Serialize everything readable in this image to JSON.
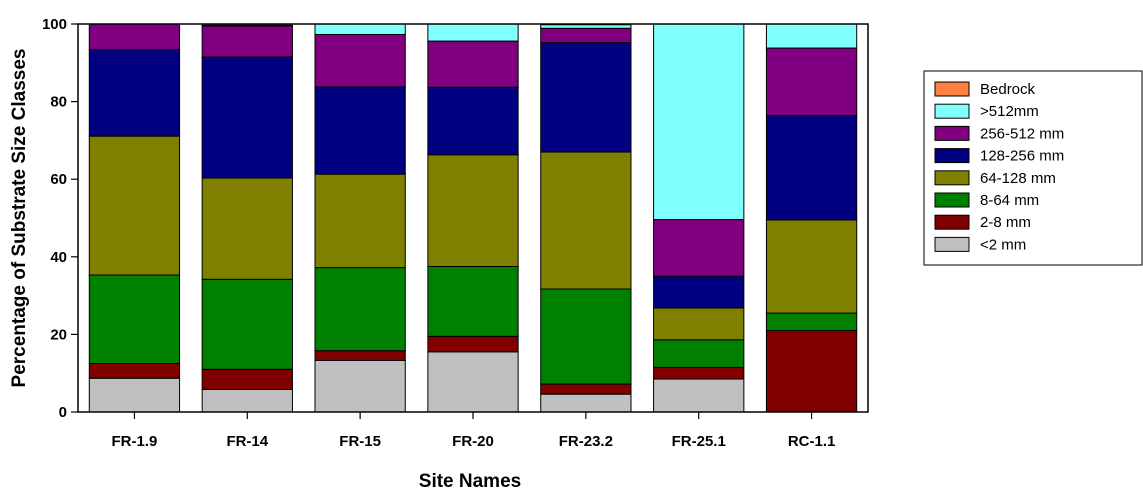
{
  "chart_data": {
    "type": "bar",
    "stacked": true,
    "xlabel": "Site Names",
    "ylabel": "Percentage of Substrate Size Classes",
    "ylim": [
      0,
      100
    ],
    "yticks": [
      0,
      20,
      40,
      60,
      80,
      100
    ],
    "legend_position": "right",
    "categories": [
      "FR-1.9",
      "FR-14",
      "FR-15",
      "FR-20",
      "FR-23.2",
      "FR-25.1",
      "RC-1.1"
    ],
    "series": [
      {
        "name": "<2 mm",
        "color": "#c0c0c0",
        "values": [
          8.7,
          5.8,
          13.3,
          15.5,
          4.6,
          8.5,
          0
        ]
      },
      {
        "name": "2-8 mm",
        "color": "#800000",
        "values": [
          3.8,
          5.2,
          2.5,
          4.0,
          2.6,
          3.0,
          21.0
        ]
      },
      {
        "name": "8-64 mm",
        "color": "#008000",
        "values": [
          22.8,
          23.2,
          21.4,
          18.0,
          24.5,
          7.1,
          4.5
        ]
      },
      {
        "name": "64-128 mm",
        "color": "#808000",
        "values": [
          35.8,
          26.1,
          24.1,
          28.8,
          35.3,
          8.2,
          24.0
        ]
      },
      {
        "name": "128-256 mm",
        "color": "#000080",
        "values": [
          22.3,
          31.2,
          22.5,
          17.4,
          28.2,
          8.2,
          26.9
        ]
      },
      {
        "name": "256-512 mm",
        "color": "#800080",
        "values": [
          6.6,
          8.0,
          13.5,
          11.9,
          3.7,
          14.6,
          17.4
        ]
      },
      {
        "name": ">512mm",
        "color": "#80ffff",
        "values": [
          0,
          0.2,
          2.7,
          4.4,
          0.9,
          50.4,
          6.2
        ]
      },
      {
        "name": "Bedrock",
        "color": "#ff8040",
        "values": [
          0,
          0,
          0,
          0,
          0,
          0,
          0
        ]
      }
    ],
    "legend_order": [
      "Bedrock",
      ">512mm",
      "256-512 mm",
      "128-256 mm",
      "64-128 mm",
      "8-64 mm",
      "2-8 mm",
      "<2 mm"
    ]
  }
}
